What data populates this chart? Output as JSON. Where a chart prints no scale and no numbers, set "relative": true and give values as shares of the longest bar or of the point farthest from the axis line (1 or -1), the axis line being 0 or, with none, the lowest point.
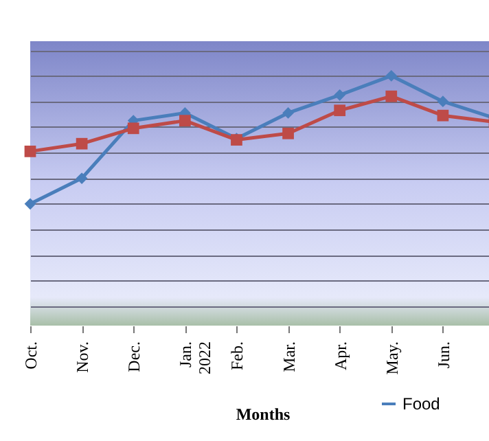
{
  "chart_data": {
    "type": "line",
    "xlabel": "Months",
    "categories": [
      "Oct.",
      "Nov.",
      "Dec.",
      "Jan. 2022",
      "Feb.",
      "Mar.",
      "Apr.",
      "May.",
      "Jun.",
      null
    ],
    "relative": true,
    "grid": "y",
    "legend": "bottom right",
    "series": [
      {
        "name": "Food",
        "color": "#4a7ebb",
        "marker": "diamond",
        "values": [
          0,
          0.2,
          0.65,
          0.71,
          0.51,
          0.71,
          0.85,
          1,
          0.8,
          0.67
        ]
      },
      {
        "color": "#be4b48",
        "marker": "square",
        "values": [
          0.41,
          0.47,
          0.59,
          0.65,
          0.5,
          0.55,
          0.73,
          0.84,
          0.69,
          0.64
        ]
      }
    ]
  }
}
